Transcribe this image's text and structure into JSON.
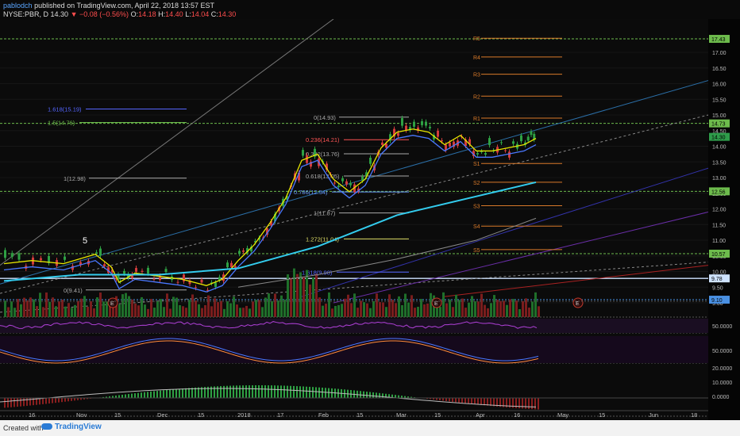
{
  "header": {
    "user": "pablodch",
    "published": "published on TradingView.com, April 22, 2018 13:57 EST"
  },
  "symbol": {
    "ticker": "NYSE:PBR, D",
    "last": "14.30",
    "change": "−0.08 (−0.56%)",
    "o_label": "O:",
    "o": "14.18",
    "h_label": "H:",
    "h": "14.40",
    "l_label": "L:",
    "l": "14.04",
    "c_label": "C:",
    "c": "14.30"
  },
  "price_axis": {
    "ticks": [
      "17.00",
      "16.50",
      "16.00",
      "15.50",
      "15.00",
      "14.50",
      "14.00",
      "13.50",
      "13.00",
      "12.50",
      "12.00",
      "11.50",
      "11.00",
      "10.50",
      "10.00",
      "9.50",
      "9.00"
    ],
    "badges": [
      {
        "label": "17.43",
        "value": 17.43,
        "color": "#6dbb4c"
      },
      {
        "label": "14.73",
        "value": 14.73,
        "color": "#6dbb4c"
      },
      {
        "label": "14.30",
        "value": 14.3,
        "color": "#2e9c4a"
      },
      {
        "label": "12.56",
        "value": 12.56,
        "color": "#6dbb4c"
      },
      {
        "label": "10.57",
        "value": 10.57,
        "color": "#6dbb4c"
      },
      {
        "label": "9.78",
        "value": 9.78,
        "color": "#cfe3ff"
      },
      {
        "label": "9.10",
        "value": 9.1,
        "color": "#4a90e2"
      }
    ]
  },
  "osc_axis": {
    "rsi": "50.0000",
    "stoch": "50.0000",
    "macd": [
      "20.0000",
      "10.0000",
      "0.0000"
    ]
  },
  "time_axis": [
    {
      "label": "16",
      "x": 42
    },
    {
      "label": "Nov",
      "x": 102
    },
    {
      "label": "15",
      "x": 150
    },
    {
      "label": "Dec",
      "x": 204
    },
    {
      "label": "15",
      "x": 255
    },
    {
      "label": "2018",
      "x": 305
    },
    {
      "label": "17",
      "x": 355
    },
    {
      "label": "Feb",
      "x": 407
    },
    {
      "label": "15",
      "x": 455
    },
    {
      "label": "Mar",
      "x": 505
    },
    {
      "label": "15",
      "x": 553
    },
    {
      "label": "Apr",
      "x": 605
    },
    {
      "label": "16",
      "x": 653
    },
    {
      "label": "May",
      "x": 708
    },
    {
      "label": "15",
      "x": 760
    },
    {
      "label": "Jun",
      "x": 823
    },
    {
      "label": "18",
      "x": 876
    }
  ],
  "pivots": [
    {
      "label": "R3",
      "value": 16.3
    },
    {
      "label": "R2",
      "value": 15.6
    },
    {
      "label": "R1",
      "value": 14.9
    },
    {
      "label": "S1",
      "value": 13.45
    },
    {
      "label": "S2",
      "value": 12.85
    },
    {
      "label": "S3",
      "value": 12.1
    },
    {
      "label": "S4",
      "value": 11.45
    },
    {
      "label": "S5",
      "value": 10.7
    },
    {
      "label": "R5",
      "value": 17.45
    },
    {
      "label": "R4",
      "value": 16.85
    }
  ],
  "fib_labels": [
    {
      "text": "1.618(15.19)",
      "value": 15.19,
      "color": "#5566ff"
    },
    {
      "text": "1.5(14.76)",
      "value": 14.76,
      "color": "#6dbb4c"
    },
    {
      "text": "0(14.93)",
      "value": 14.93,
      "color": "#aaaaaa"
    },
    {
      "text": "0.236(14.21)",
      "value": 14.21,
      "color": "#ff5555"
    },
    {
      "text": "0.382(13.76)",
      "value": 13.76,
      "color": "#aaaaaa"
    },
    {
      "text": "0.618(13.05)",
      "value": 13.05,
      "color": "#aaaaaa"
    },
    {
      "text": "1(12.98)",
      "value": 12.98,
      "color": "#aaaaaa"
    },
    {
      "text": "0.786(12.54)",
      "value": 12.54,
      "color": "#6699ff"
    },
    {
      "text": "1(11.87)",
      "value": 11.87,
      "color": "#aaaaaa"
    },
    {
      "text": "1.272(11.04)",
      "value": 11.04,
      "color": "#dddd66"
    },
    {
      "text": "1.618(9.98)",
      "value": 9.98,
      "color": "#5566ff"
    },
    {
      "text": "0(9.41)",
      "value": 9.41,
      "color": "#aaaaaa"
    }
  ],
  "annotations": {
    "wave": "5",
    "earnings": "E"
  },
  "footer": {
    "created": "Created with",
    "brand": "TradingView"
  }
}
